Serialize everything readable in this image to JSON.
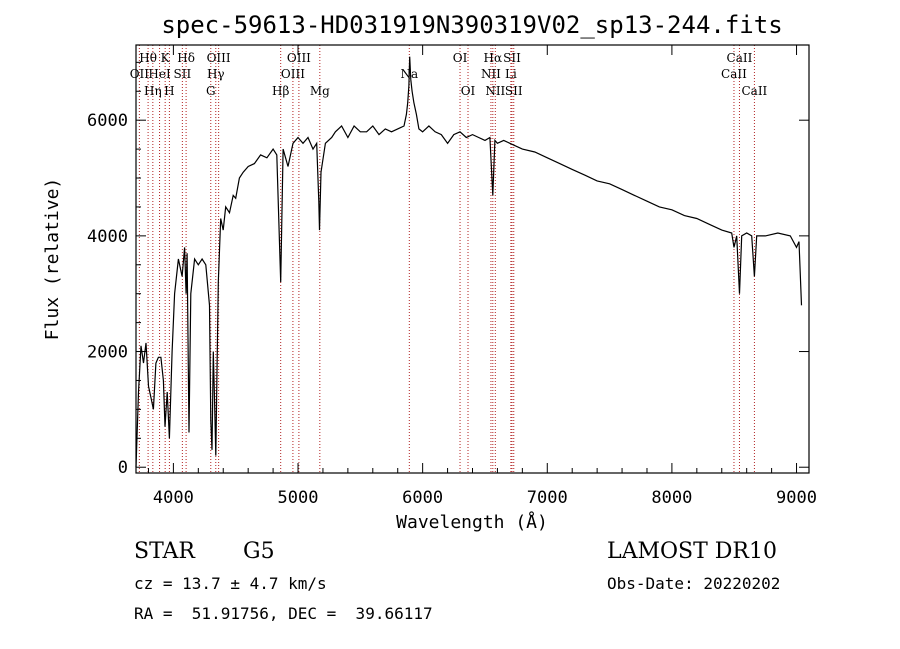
{
  "chart_data": {
    "type": "line",
    "title": "spec-59613-HD031919N390319V02_sp13-244.fits",
    "xlabel": "Wavelength (Å)",
    "ylabel": "Flux (relative)",
    "xlim": [
      3700,
      9100
    ],
    "ylim": [
      -100,
      7300
    ],
    "xticks": [
      4000,
      5000,
      6000,
      7000,
      8000,
      9000
    ],
    "yticks": [
      0,
      2000,
      4000,
      6000
    ],
    "grid": false,
    "line_color": "#000000",
    "marker_color": "#b22222",
    "series": [
      {
        "values": [
          [
            3700,
            0
          ],
          [
            3720,
            1300
          ],
          [
            3740,
            2100
          ],
          [
            3760,
            1800
          ],
          [
            3780,
            2150
          ],
          [
            3800,
            1400
          ],
          [
            3820,
            1200
          ],
          [
            3840,
            1000
          ],
          [
            3860,
            1800
          ],
          [
            3880,
            1900
          ],
          [
            3900,
            1900
          ],
          [
            3920,
            1500
          ],
          [
            3933,
            700
          ],
          [
            3950,
            1300
          ],
          [
            3968,
            500
          ],
          [
            3990,
            2000
          ],
          [
            4010,
            3000
          ],
          [
            4040,
            3600
          ],
          [
            4070,
            3300
          ],
          [
            4090,
            3800
          ],
          [
            4102,
            3000
          ],
          [
            4110,
            3700
          ],
          [
            4125,
            600
          ],
          [
            4140,
            3000
          ],
          [
            4170,
            3600
          ],
          [
            4200,
            3500
          ],
          [
            4230,
            3600
          ],
          [
            4260,
            3500
          ],
          [
            4290,
            2800
          ],
          [
            4300,
            800
          ],
          [
            4310,
            300
          ],
          [
            4320,
            2000
          ],
          [
            4330,
            1200
          ],
          [
            4340,
            200
          ],
          [
            4360,
            3200
          ],
          [
            4380,
            4300
          ],
          [
            4400,
            4100
          ],
          [
            4420,
            4500
          ],
          [
            4450,
            4400
          ],
          [
            4480,
            4700
          ],
          [
            4500,
            4650
          ],
          [
            4530,
            5000
          ],
          [
            4560,
            5100
          ],
          [
            4600,
            5200
          ],
          [
            4650,
            5250
          ],
          [
            4700,
            5400
          ],
          [
            4750,
            5350
          ],
          [
            4800,
            5500
          ],
          [
            4830,
            5400
          ],
          [
            4861,
            3200
          ],
          [
            4880,
            5500
          ],
          [
            4920,
            5200
          ],
          [
            4960,
            5600
          ],
          [
            5000,
            5700
          ],
          [
            5040,
            5600
          ],
          [
            5080,
            5700
          ],
          [
            5120,
            5500
          ],
          [
            5150,
            5600
          ],
          [
            5167,
            4600
          ],
          [
            5172,
            4100
          ],
          [
            5184,
            5100
          ],
          [
            5220,
            5600
          ],
          [
            5270,
            5700
          ],
          [
            5300,
            5800
          ],
          [
            5350,
            5900
          ],
          [
            5400,
            5700
          ],
          [
            5450,
            5900
          ],
          [
            5500,
            5800
          ],
          [
            5550,
            5800
          ],
          [
            5600,
            5900
          ],
          [
            5650,
            5750
          ],
          [
            5700,
            5850
          ],
          [
            5750,
            5800
          ],
          [
            5800,
            5850
          ],
          [
            5850,
            5900
          ],
          [
            5870,
            6100
          ],
          [
            5880,
            6300
          ],
          [
            5890,
            6600
          ],
          [
            5896,
            7100
          ],
          [
            5905,
            6700
          ],
          [
            5915,
            6500
          ],
          [
            5930,
            6300
          ],
          [
            5950,
            6100
          ],
          [
            5970,
            5850
          ],
          [
            6000,
            5800
          ],
          [
            6050,
            5900
          ],
          [
            6100,
            5800
          ],
          [
            6150,
            5750
          ],
          [
            6200,
            5600
          ],
          [
            6250,
            5750
          ],
          [
            6300,
            5800
          ],
          [
            6350,
            5700
          ],
          [
            6400,
            5750
          ],
          [
            6450,
            5700
          ],
          [
            6500,
            5650
          ],
          [
            6540,
            5700
          ],
          [
            6563,
            4700
          ],
          [
            6580,
            5650
          ],
          [
            6600,
            5600
          ],
          [
            6650,
            5650
          ],
          [
            6700,
            5600
          ],
          [
            6750,
            5550
          ],
          [
            6800,
            5500
          ],
          [
            6900,
            5450
          ],
          [
            7000,
            5350
          ],
          [
            7100,
            5250
          ],
          [
            7200,
            5150
          ],
          [
            7300,
            5050
          ],
          [
            7400,
            4950
          ],
          [
            7500,
            4900
          ],
          [
            7600,
            4800
          ],
          [
            7700,
            4700
          ],
          [
            7800,
            4600
          ],
          [
            7900,
            4500
          ],
          [
            8000,
            4450
          ],
          [
            8100,
            4350
          ],
          [
            8200,
            4300
          ],
          [
            8300,
            4200
          ],
          [
            8400,
            4100
          ],
          [
            8480,
            4050
          ],
          [
            8498,
            3800
          ],
          [
            8520,
            4000
          ],
          [
            8542,
            3000
          ],
          [
            8560,
            4000
          ],
          [
            8600,
            4050
          ],
          [
            8640,
            4000
          ],
          [
            8662,
            3300
          ],
          [
            8680,
            4000
          ],
          [
            8750,
            4000
          ],
          [
            8850,
            4050
          ],
          [
            8950,
            4000
          ],
          [
            9000,
            3800
          ],
          [
            9020,
            3900
          ],
          [
            9040,
            2800
          ]
        ]
      }
    ],
    "line_markers": [
      {
        "x": 3727,
        "label": "OII",
        "row": 2
      },
      {
        "x": 3797,
        "label": "Hθ",
        "row": 1
      },
      {
        "x": 3835,
        "label": "Hη",
        "row": 3
      },
      {
        "x": 3889,
        "label": "HeI",
        "row": 2
      },
      {
        "x": 3934,
        "label": "K",
        "row": 1
      },
      {
        "x": 3968,
        "label": "H",
        "row": 3
      },
      {
        "x": 4072,
        "label": "SII",
        "row": 2
      },
      {
        "x": 4102,
        "label": "Hδ",
        "row": 1
      },
      {
        "x": 4300,
        "label": "G",
        "row": 3
      },
      {
        "x": 4340,
        "label": "Hγ",
        "row": 2
      },
      {
        "x": 4363,
        "label": "OIII",
        "row": 1
      },
      {
        "x": 4861,
        "label": "Hβ",
        "row": 3
      },
      {
        "x": 4959,
        "label": "OIII",
        "row": 2
      },
      {
        "x": 5007,
        "label": "OIII",
        "row": 1
      },
      {
        "x": 5175,
        "label": "Mg",
        "row": 3
      },
      {
        "x": 5893,
        "label": "Na",
        "row": 2
      },
      {
        "x": 6300,
        "label": "OI",
        "row": 1
      },
      {
        "x": 6364,
        "label": "OI",
        "row": 3
      },
      {
        "x": 6548,
        "label": "NII",
        "row": 2
      },
      {
        "x": 6563,
        "label": "Hα",
        "row": 1
      },
      {
        "x": 6583,
        "label": "NII",
        "row": 3
      },
      {
        "x": 6708,
        "label": "Li",
        "row": 2
      },
      {
        "x": 6717,
        "label": "SII",
        "row": 1
      },
      {
        "x": 6731,
        "label": "SII",
        "row": 3
      },
      {
        "x": 8498,
        "label": "CaII",
        "row": 2
      },
      {
        "x": 8542,
        "label": "CaII",
        "row": 1
      },
      {
        "x": 8662,
        "label": "CaII",
        "row": 3
      }
    ]
  },
  "info": {
    "class": "STAR",
    "subclass": "G5",
    "survey": "LAMOST DR10",
    "cz": "cz = 13.7 ± 4.7 km/s",
    "obs_date": "Obs-Date: 20220202",
    "coords": "RA =  51.91756, DEC =  39.66117"
  }
}
